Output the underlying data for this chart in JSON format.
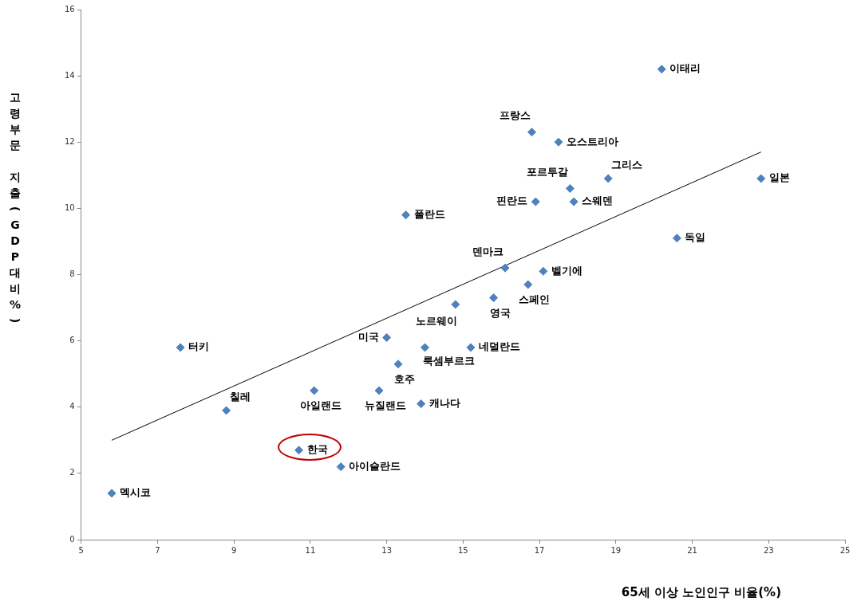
{
  "chart_data": {
    "type": "scatter",
    "xlabel": "65세 이상 노인인구 비율(%)",
    "ylabel": "고령부문 지출(GDP대비%)",
    "xlim": [
      5,
      25
    ],
    "ylim": [
      0,
      16
    ],
    "xticks": [
      5,
      7,
      9,
      11,
      13,
      15,
      17,
      19,
      21,
      23,
      25
    ],
    "yticks": [
      0,
      2,
      4,
      6,
      8,
      10,
      12,
      14,
      16
    ],
    "grid": false,
    "legend": false,
    "marker": "diamond",
    "series": [
      {
        "name": "이태리",
        "color": "#4f81bd",
        "x": [
          20.2
        ],
        "values": [
          14.2
        ]
      },
      {
        "name": "프랑스",
        "color": "#4f81bd",
        "x": [
          16.8
        ],
        "values": [
          12.3
        ]
      },
      {
        "name": "오스트리아",
        "color": "#4f81bd",
        "x": [
          17.5
        ],
        "values": [
          12.0
        ]
      },
      {
        "name": "포르투갈",
        "color": "#4f81bd",
        "x": [
          17.8
        ],
        "values": [
          10.6
        ]
      },
      {
        "name": "그리스",
        "color": "#4f81bd",
        "x": [
          18.8
        ],
        "values": [
          10.9
        ]
      },
      {
        "name": "일본",
        "color": "#4f81bd",
        "x": [
          22.8
        ],
        "values": [
          10.9
        ]
      },
      {
        "name": "핀란드",
        "color": "#4f81bd",
        "x": [
          16.9
        ],
        "values": [
          10.2
        ]
      },
      {
        "name": "스웨덴",
        "color": "#4f81bd",
        "x": [
          17.9
        ],
        "values": [
          10.2
        ]
      },
      {
        "name": "폴란드",
        "color": "#4f81bd",
        "x": [
          13.5
        ],
        "values": [
          9.8
        ]
      },
      {
        "name": "독일",
        "color": "#4f81bd",
        "x": [
          20.6
        ],
        "values": [
          9.1
        ]
      },
      {
        "name": "덴마크",
        "color": "#4f81bd",
        "x": [
          16.1
        ],
        "values": [
          8.2
        ]
      },
      {
        "name": "벨기에",
        "color": "#4f81bd",
        "x": [
          17.1
        ],
        "values": [
          8.1
        ]
      },
      {
        "name": "스페인",
        "color": "#4f81bd",
        "x": [
          16.7
        ],
        "values": [
          7.7
        ]
      },
      {
        "name": "영국",
        "color": "#4f81bd",
        "x": [
          15.8
        ],
        "values": [
          7.3
        ]
      },
      {
        "name": "노르웨이",
        "color": "#4f81bd",
        "x": [
          14.8
        ],
        "values": [
          7.1
        ]
      },
      {
        "name": "미국",
        "color": "#4f81bd",
        "x": [
          13.0
        ],
        "values": [
          6.1
        ]
      },
      {
        "name": "터키",
        "color": "#4f81bd",
        "x": [
          7.6
        ],
        "values": [
          5.8
        ]
      },
      {
        "name": "룩셈부르크",
        "color": "#4f81bd",
        "x": [
          14.0
        ],
        "values": [
          5.8
        ]
      },
      {
        "name": "네덜란드",
        "color": "#4f81bd",
        "x": [
          15.2
        ],
        "values": [
          5.8
        ]
      },
      {
        "name": "호주",
        "color": "#4f81bd",
        "x": [
          13.3
        ],
        "values": [
          5.3
        ]
      },
      {
        "name": "칠레",
        "color": "#4f81bd",
        "x": [
          8.8
        ],
        "values": [
          3.9
        ]
      },
      {
        "name": "아일랜드",
        "color": "#4f81bd",
        "x": [
          11.1
        ],
        "values": [
          4.5
        ]
      },
      {
        "name": "뉴질랜드",
        "color": "#4f81bd",
        "x": [
          12.8
        ],
        "values": [
          4.5
        ]
      },
      {
        "name": "캐나다",
        "color": "#4f81bd",
        "x": [
          13.9
        ],
        "values": [
          4.1
        ]
      },
      {
        "name": "한국",
        "color": "#4f81bd",
        "x": [
          10.7
        ],
        "values": [
          2.7
        ]
      },
      {
        "name": "아이슬란드",
        "color": "#4f81bd",
        "x": [
          11.8
        ],
        "values": [
          2.2
        ]
      },
      {
        "name": "멕시코",
        "color": "#4f81bd",
        "x": [
          5.8
        ],
        "values": [
          1.4
        ]
      },
      {
        "type": "line",
        "color": "#000000",
        "marker": "none",
        "x": [
          5.8,
          22.8
        ],
        "values": [
          3.0,
          11.7
        ]
      }
    ]
  }
}
